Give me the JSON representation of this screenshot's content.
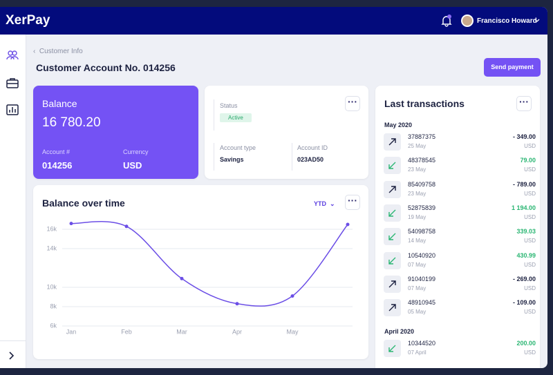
{
  "header": {
    "brand": "XerPay",
    "user": "Francisco Howard"
  },
  "breadcrumb": "Customer Info",
  "page_title": "Customer Account No. 014256",
  "send_button": "Send payment",
  "balance_card": {
    "title": "Balance",
    "amount": "16 780.20",
    "account_label": "Account #",
    "account": "014256",
    "currency_label": "Currency",
    "currency": "USD"
  },
  "status_card": {
    "status_label": "Status",
    "status": "Active",
    "type_label": "Account type",
    "type": "Savings",
    "id_label": "Account ID",
    "id": "023AD50"
  },
  "chart_data": {
    "type": "line",
    "title": "Balance over time",
    "period": "YTD",
    "categories": [
      "Jan",
      "Feb",
      "Mar",
      "Apr",
      "May",
      null
    ],
    "values": [
      16600,
      16300,
      10900,
      8300,
      9100,
      16500
    ],
    "color": "#6b4ee6",
    "ylim": [
      6000,
      17500
    ],
    "yticks": [
      {
        "value": 6000,
        "label": "6k"
      },
      {
        "value": 8000,
        "label": "8k"
      },
      {
        "value": 10000,
        "label": "10k"
      },
      {
        "value": 14000,
        "label": "14k"
      },
      {
        "value": 16000,
        "label": "16k"
      }
    ],
    "grid": true
  },
  "transactions": {
    "title": "Last transactions",
    "groups": [
      {
        "month": "May 2020",
        "items": [
          {
            "id": "37887375",
            "date": "25 May",
            "amount": "- 349.00",
            "currency": "USD"
          },
          {
            "id": "48378545",
            "date": "23 May",
            "amount": "79.00",
            "currency": "USD"
          },
          {
            "id": "85409758",
            "date": "23 May",
            "amount": "- 789.00",
            "currency": "USD"
          },
          {
            "id": "52875839",
            "date": "19 May",
            "amount": "1 194.00",
            "currency": "USD"
          },
          {
            "id": "54098758",
            "date": "14 May",
            "amount": "339.03",
            "currency": "USD"
          },
          {
            "id": "10540920",
            "date": "07 May",
            "amount": "430.99",
            "currency": "USD"
          },
          {
            "id": "91040199",
            "date": "07 May",
            "amount": "- 269.00",
            "currency": "USD"
          },
          {
            "id": "48910945",
            "date": "05 May",
            "amount": "- 109.00",
            "currency": "USD"
          }
        ]
      },
      {
        "month": "April 2020",
        "items": [
          {
            "id": "10344520",
            "date": "07 April",
            "amount": "200.00",
            "currency": "USD"
          }
        ]
      }
    ]
  }
}
